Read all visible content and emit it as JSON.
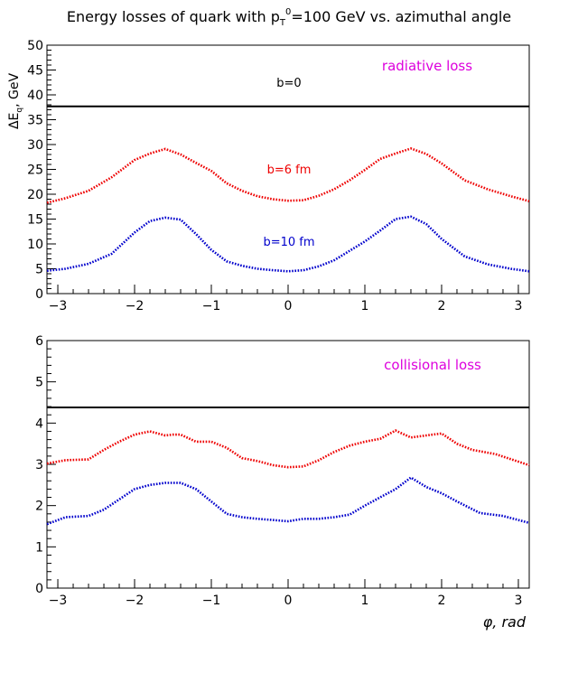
{
  "figure": {
    "title_prefix": "Energy losses of quark with p",
    "title_sub": "T",
    "title_sup": "0",
    "title_suffix": "=100 GeV vs. azimuthal angle"
  },
  "chart_data": [
    {
      "type": "line",
      "ylabel_main": "ΔE",
      "ylabel_sub": "q",
      "ylabel_rest": ", GeV",
      "xlabel": "",
      "xlim": [
        -3.1416,
        3.1416
      ],
      "ylim": [
        0,
        50
      ],
      "xticks": [
        "-3",
        "-2",
        "-1",
        "0",
        "1",
        "2",
        "3"
      ],
      "yticks": [
        "0",
        "5",
        "10",
        "15",
        "20",
        "25",
        "30",
        "35",
        "40",
        "45",
        "50"
      ],
      "annotation": "radiative loss",
      "series": [
        {
          "name": "b=0",
          "color": "#000000",
          "style": "solid",
          "x": [
            -3.14,
            3.14
          ],
          "y": [
            37.7,
            37.7
          ]
        },
        {
          "name": "b=6 fm",
          "color": "#ee0000",
          "style": "dotted",
          "x": [
            -3.14,
            -2.9,
            -2.6,
            -2.3,
            -2.0,
            -1.8,
            -1.6,
            -1.4,
            -1.2,
            -1.0,
            -0.8,
            -0.6,
            -0.4,
            -0.2,
            0.0,
            0.2,
            0.4,
            0.6,
            0.8,
            1.0,
            1.2,
            1.4,
            1.6,
            1.8,
            2.0,
            2.3,
            2.6,
            2.9,
            3.14
          ],
          "y": [
            18.3,
            19.2,
            20.7,
            23.4,
            26.9,
            28.2,
            29.1,
            28.0,
            26.3,
            24.7,
            22.2,
            20.7,
            19.6,
            19.0,
            18.7,
            18.8,
            19.7,
            21.0,
            22.8,
            24.9,
            27.1,
            28.2,
            29.2,
            28.1,
            26.2,
            22.8,
            21.0,
            19.6,
            18.6
          ]
        },
        {
          "name": "b=10 fm",
          "color": "#0000cc",
          "style": "dotted",
          "x": [
            -3.14,
            -2.9,
            -2.6,
            -2.3,
            -2.0,
            -1.8,
            -1.6,
            -1.4,
            -1.2,
            -1.0,
            -0.8,
            -0.6,
            -0.4,
            -0.2,
            0.0,
            0.2,
            0.4,
            0.6,
            0.8,
            1.0,
            1.2,
            1.4,
            1.6,
            1.8,
            2.0,
            2.3,
            2.6,
            2.9,
            3.14
          ],
          "y": [
            4.6,
            5.0,
            6.0,
            8.0,
            12.3,
            14.6,
            15.3,
            14.9,
            12.0,
            8.8,
            6.5,
            5.6,
            5.0,
            4.7,
            4.5,
            4.7,
            5.5,
            6.7,
            8.6,
            10.5,
            12.7,
            15.0,
            15.5,
            14.0,
            11.0,
            7.5,
            5.9,
            5.0,
            4.5
          ]
        }
      ],
      "labels": [
        "b=0",
        "b=6 fm",
        "b=10 fm"
      ]
    },
    {
      "type": "line",
      "xlabel": "φ, rad",
      "ylabel_main": "",
      "ylabel_sub": "",
      "ylabel_rest": "",
      "xlim": [
        -3.1416,
        3.1416
      ],
      "ylim": [
        0,
        6
      ],
      "xticks": [
        "-3",
        "-2",
        "-1",
        "0",
        "1",
        "2",
        "3"
      ],
      "yticks": [
        "0",
        "1",
        "2",
        "3",
        "4",
        "5",
        "6"
      ],
      "annotation": "collisional loss",
      "series": [
        {
          "name": "b=0",
          "color": "#000000",
          "style": "solid",
          "x": [
            -3.14,
            3.14
          ],
          "y": [
            4.38,
            4.38
          ]
        },
        {
          "name": "b=6 fm",
          "color": "#ee0000",
          "style": "dotted",
          "x": [
            -3.14,
            -2.9,
            -2.6,
            -2.4,
            -2.2,
            -2.0,
            -1.8,
            -1.6,
            -1.5,
            -1.4,
            -1.2,
            -1.0,
            -0.8,
            -0.6,
            -0.4,
            -0.2,
            0.0,
            0.2,
            0.4,
            0.6,
            0.8,
            1.0,
            1.2,
            1.4,
            1.6,
            1.8,
            2.0,
            2.2,
            2.4,
            2.7,
            3.14
          ],
          "y": [
            3.02,
            3.1,
            3.12,
            3.35,
            3.55,
            3.72,
            3.8,
            3.7,
            3.72,
            3.72,
            3.55,
            3.55,
            3.4,
            3.15,
            3.08,
            2.98,
            2.93,
            2.95,
            3.1,
            3.3,
            3.45,
            3.55,
            3.62,
            3.82,
            3.65,
            3.7,
            3.75,
            3.5,
            3.35,
            3.25,
            2.98
          ]
        },
        {
          "name": "b=10 fm",
          "color": "#0000cc",
          "style": "dotted",
          "x": [
            -3.14,
            -2.9,
            -2.6,
            -2.4,
            -2.2,
            -2.0,
            -1.8,
            -1.6,
            -1.4,
            -1.2,
            -1.0,
            -0.8,
            -0.6,
            -0.4,
            -0.2,
            0.0,
            0.2,
            0.4,
            0.6,
            0.8,
            1.0,
            1.2,
            1.4,
            1.6,
            1.8,
            2.0,
            2.2,
            2.5,
            2.8,
            3.14
          ],
          "y": [
            1.55,
            1.72,
            1.75,
            1.9,
            2.15,
            2.4,
            2.5,
            2.55,
            2.55,
            2.4,
            2.1,
            1.8,
            1.72,
            1.68,
            1.65,
            1.62,
            1.68,
            1.68,
            1.72,
            1.78,
            2.0,
            2.2,
            2.4,
            2.68,
            2.45,
            2.3,
            2.1,
            1.82,
            1.75,
            1.58
          ]
        }
      ],
      "labels": []
    }
  ]
}
